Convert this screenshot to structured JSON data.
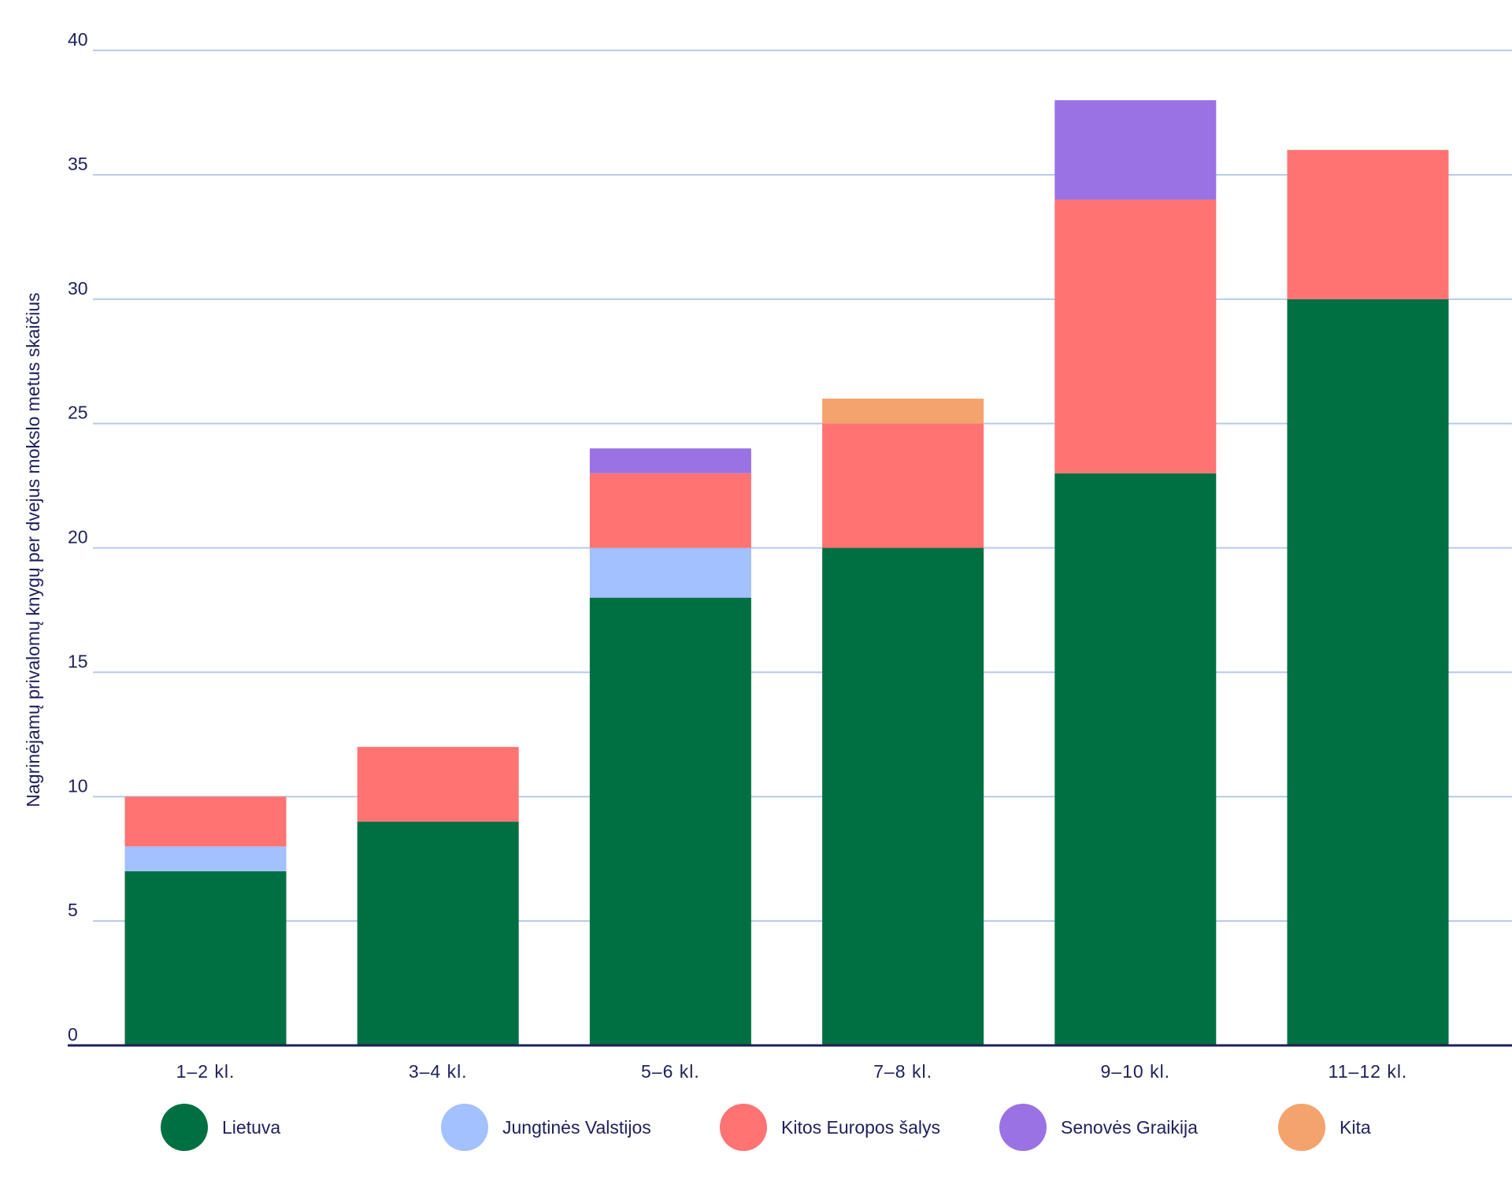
{
  "chart_data": {
    "type": "bar",
    "stacked": true,
    "ylabel": "Nagrinėjamų privalomų knygų per dvejus mokslo metus skaičius",
    "xlabel": "",
    "ylim": [
      0,
      40
    ],
    "yticks": [
      0,
      5,
      10,
      15,
      20,
      25,
      30,
      35,
      40
    ],
    "grid": true,
    "legend_position": "bottom",
    "categories": [
      "1–2 kl.",
      "3–4 kl.",
      "5–6 kl.",
      "7–8 kl.",
      "9–10 kl.",
      "11–12 kl."
    ],
    "series": [
      {
        "name": "Lietuva",
        "color": "#007042",
        "values": [
          7,
          9,
          18,
          20,
          23,
          30
        ]
      },
      {
        "name": "Jungtinės Valstijos",
        "color": "#a3c0ff",
        "values": [
          1,
          0,
          2,
          0,
          0,
          0
        ]
      },
      {
        "name": "Kitos Europos šalys",
        "color": "#ff7373",
        "values": [
          2,
          3,
          3,
          5,
          11,
          6
        ]
      },
      {
        "name": "Senovės Graikija",
        "color": "#9b72e3",
        "values": [
          0,
          0,
          1,
          0,
          4,
          0
        ]
      },
      {
        "name": "Kita",
        "color": "#f4a36c",
        "values": [
          0,
          0,
          0,
          1,
          0,
          0
        ]
      }
    ],
    "colors": {
      "grid": "#b7c8ea",
      "axis": "#1d1f5c",
      "text": "#1d1f5c"
    }
  }
}
